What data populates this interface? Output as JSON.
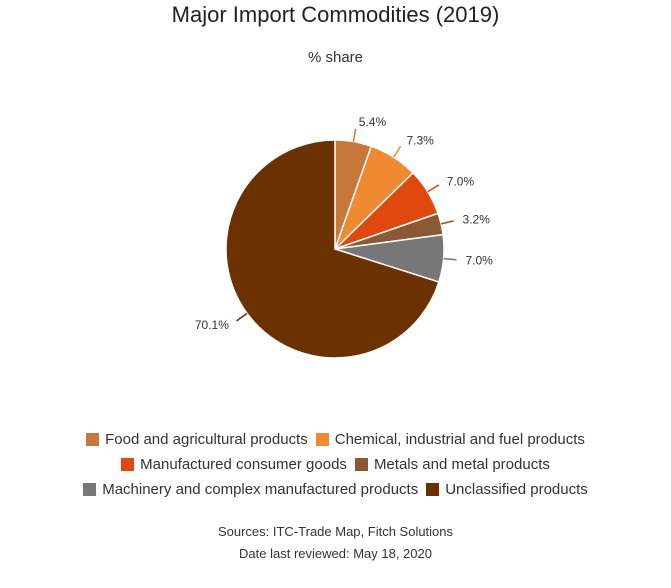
{
  "chart_data": {
    "type": "pie",
    "title": "Major Import Commodities (2019)",
    "subtitle": "% share",
    "slices": [
      {
        "label": "Food and agricultural products",
        "value": 5.4,
        "display": "5.4%",
        "color": "#c8773a"
      },
      {
        "label": "Chemical, industrial and fuel products",
        "value": 7.3,
        "display": "7.3%",
        "color": "#f08a30"
      },
      {
        "label": "Manufactured consumer goods",
        "value": 7.0,
        "display": "7.0%",
        "color": "#e0480e"
      },
      {
        "label": "Metals and metal products",
        "value": 3.2,
        "display": "3.2%",
        "color": "#8a5832"
      },
      {
        "label": "Machinery and complex manufactured products",
        "value": 7.0,
        "display": "7.0%",
        "color": "#777777"
      },
      {
        "label": "Unclassified products",
        "value": 70.1,
        "display": "70.1%",
        "color": "#6b3200"
      }
    ],
    "legend_rows": [
      [
        0,
        1
      ],
      [
        2,
        3
      ],
      [
        4,
        5
      ]
    ]
  },
  "footer": {
    "sources": "Sources: ITC-Trade Map, Fitch Solutions",
    "reviewed": "Date last reviewed: May 18, 2020"
  }
}
